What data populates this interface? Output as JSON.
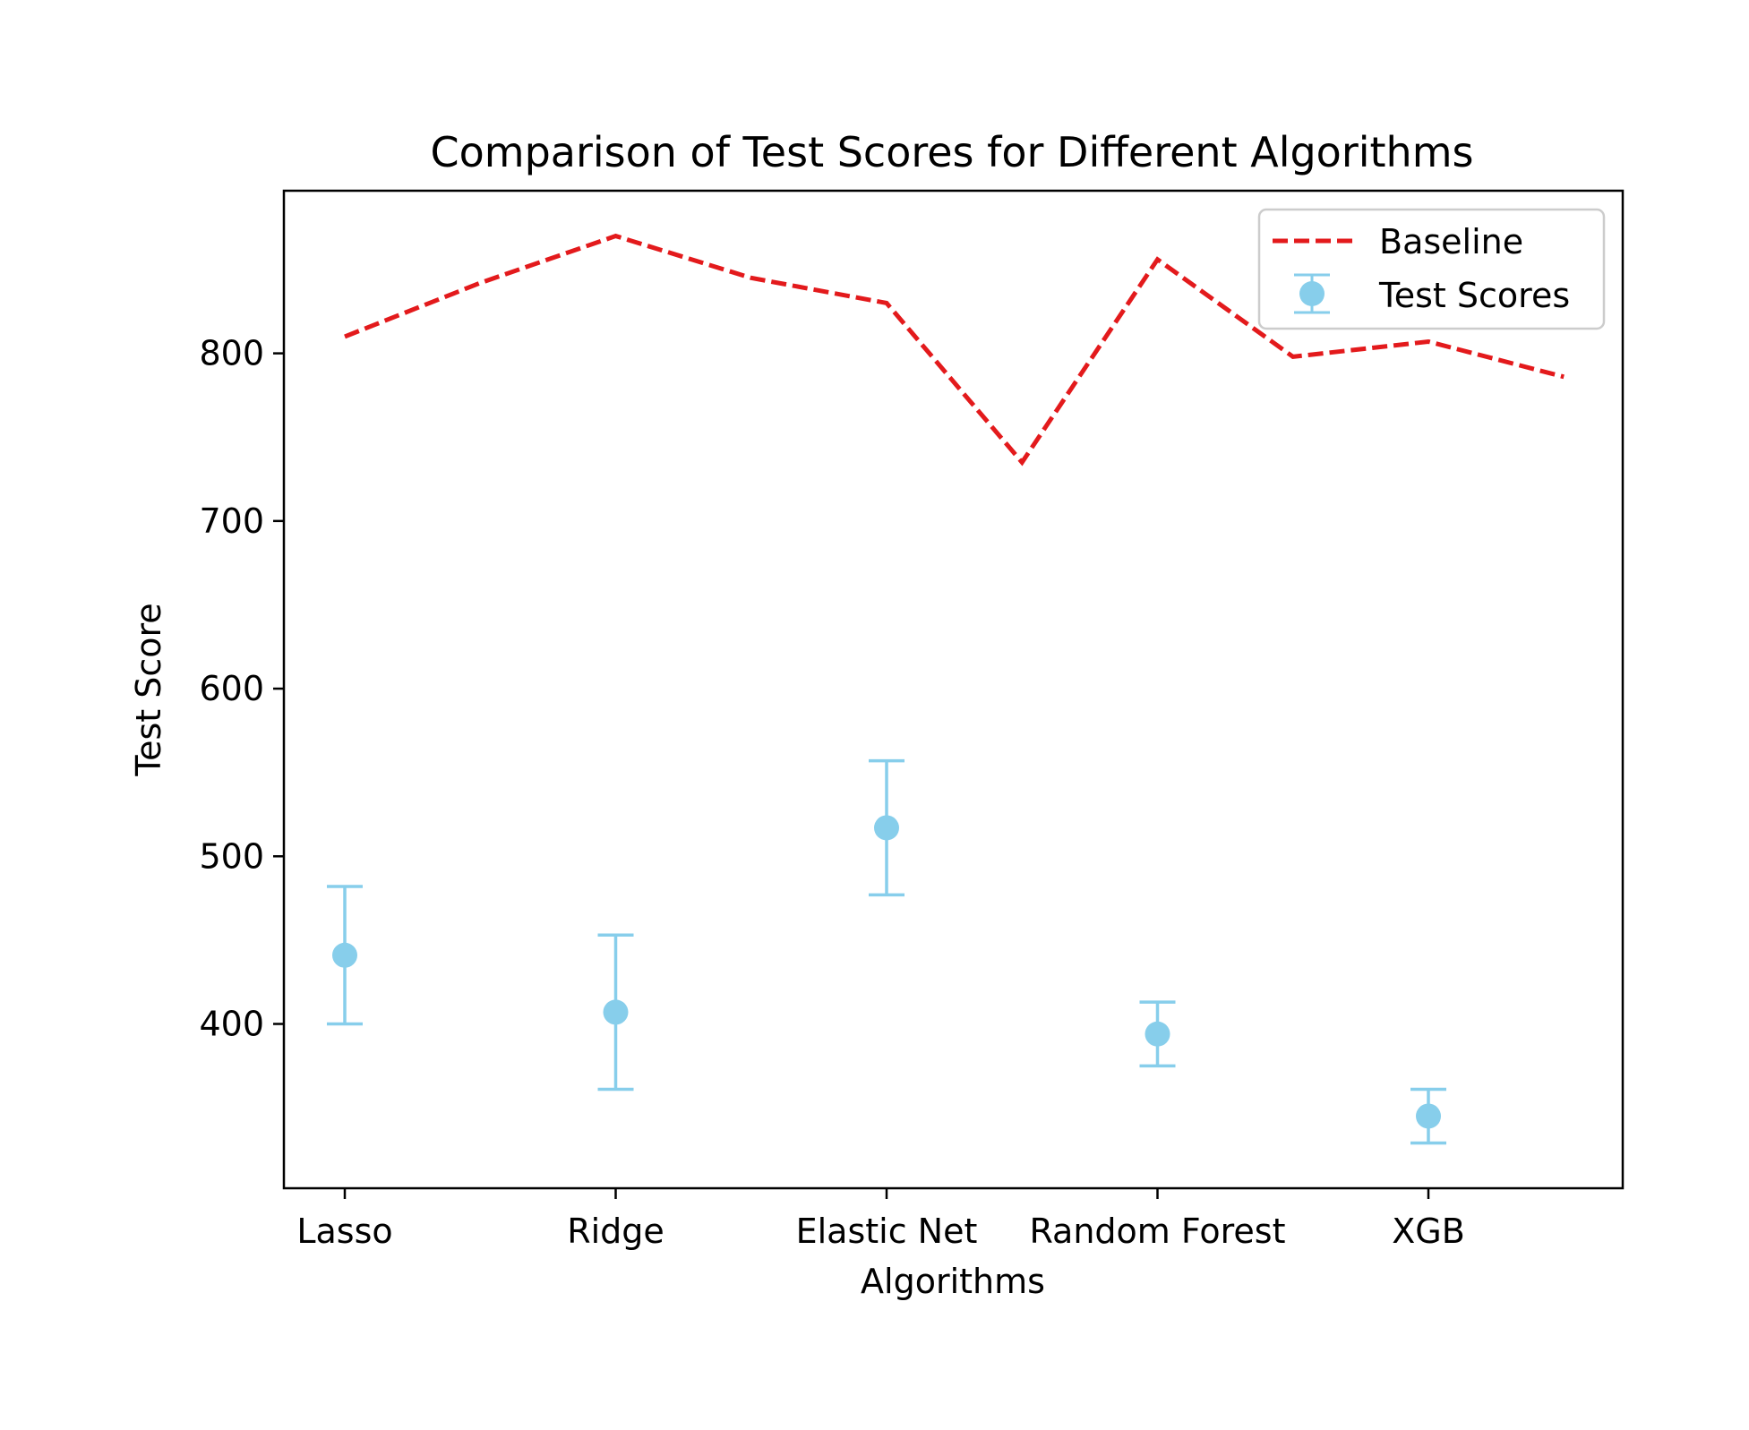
{
  "chart_data": {
    "type": "line",
    "title": "Comparison of Test Scores for Different Algorithms",
    "xlabel": "Algorithms",
    "ylabel": "Test Score",
    "categories": [
      "Lasso",
      "Ridge",
      "Elastic Net",
      "Random Forest",
      "XGB"
    ],
    "yticks": [
      400,
      500,
      600,
      700,
      800
    ],
    "ylim": [
      302,
      897
    ],
    "grid": false,
    "legend_placement": "top-right",
    "colors": {
      "baseline": "#e31a1c",
      "test_scores": "#87ceeb",
      "axes": "#000000"
    },
    "series": [
      {
        "name": "Baseline",
        "style": "dashed-line",
        "x": [
          0,
          0.5,
          1,
          1.5,
          2,
          2.5,
          3,
          3.5,
          4,
          4.5
        ],
        "values": [
          810,
          842,
          870,
          845,
          830,
          735,
          856,
          798,
          807,
          786
        ]
      },
      {
        "name": "Test Scores",
        "style": "errorbar",
        "x": [
          0,
          1,
          2,
          3,
          4
        ],
        "values": [
          441,
          407,
          517,
          394,
          345
        ],
        "errors": [
          41,
          46,
          40,
          19,
          16
        ]
      }
    ]
  }
}
